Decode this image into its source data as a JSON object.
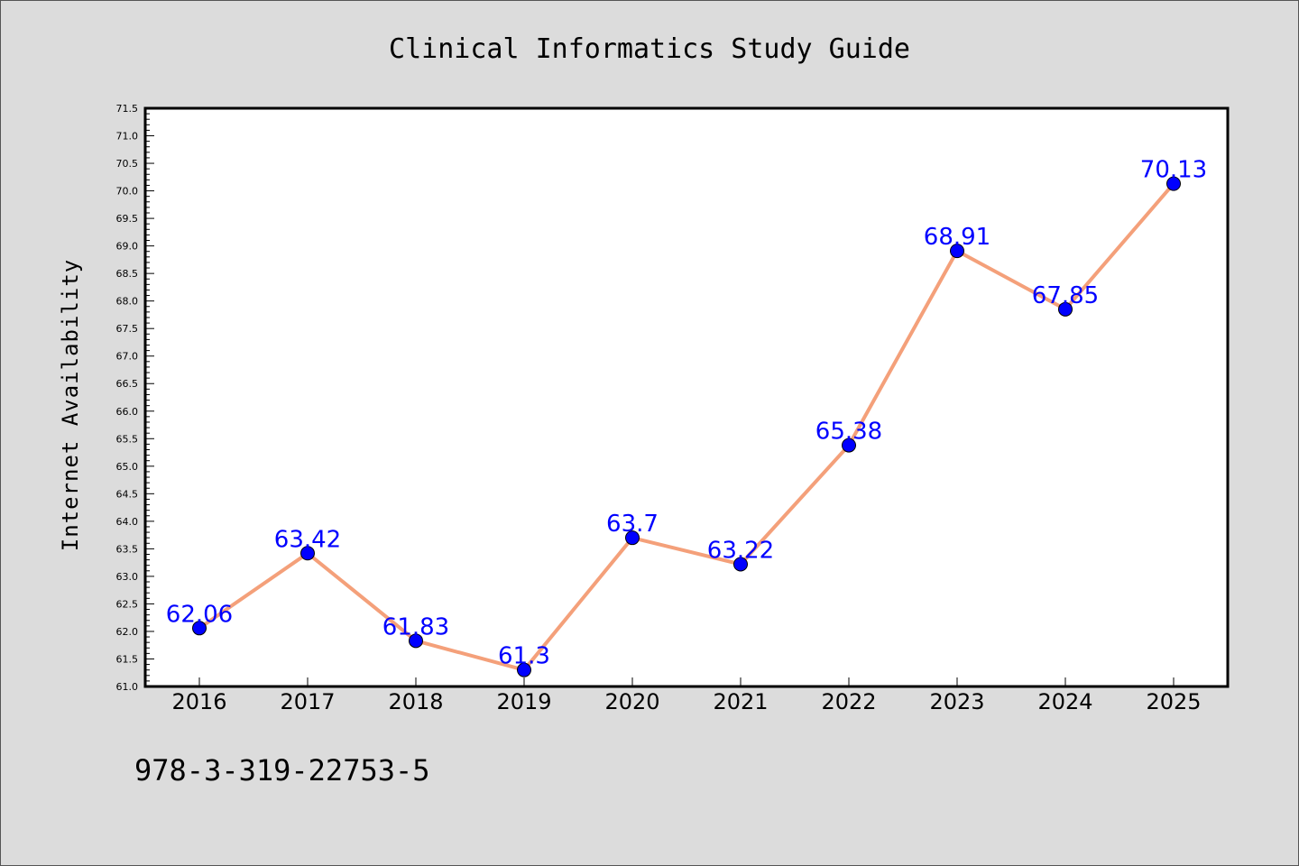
{
  "colors": {
    "background": "#dcdcdc",
    "plot_background": "#ffffff",
    "line": "#f4a07a",
    "marker": "#0000ff",
    "data_label": "#0000ff",
    "axis": "#000000"
  },
  "footer": {
    "isbn": "978-3-319-22753-5"
  },
  "chart_data": {
    "type": "line",
    "title": "Clinical Informatics Study Guide",
    "xlabel": "",
    "ylabel": "Internet Availability",
    "categories": [
      "2016",
      "2017",
      "2018",
      "2019",
      "2020",
      "2021",
      "2022",
      "2023",
      "2024",
      "2025"
    ],
    "series": [
      {
        "values": [
          62.06,
          63.42,
          61.83,
          61.3,
          63.7,
          63.22,
          65.38,
          68.91,
          67.85,
          70.13
        ],
        "data_labels": [
          "62.06",
          "63.42",
          "61.83",
          "61.3",
          "63.7",
          "63.22",
          "65.38",
          "68.91",
          "67.85",
          "70.13"
        ]
      }
    ],
    "ylim": [
      61.0,
      71.5
    ],
    "yticks": [
      "61.0",
      "61.5",
      "62.0",
      "62.5",
      "63.0",
      "63.5",
      "64.0",
      "64.5",
      "65.0",
      "65.5",
      "66.0",
      "66.5",
      "67.0",
      "67.5",
      "68.0",
      "68.5",
      "69.0",
      "69.5",
      "70.0",
      "70.5",
      "71.0",
      "71.5"
    ],
    "grid": false,
    "legend": "none"
  }
}
